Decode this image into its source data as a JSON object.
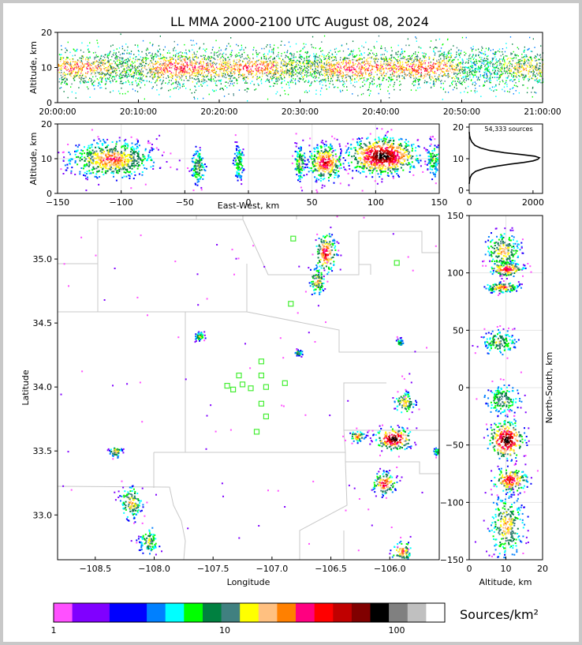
{
  "title": "LL MMA 2000-2100 UTC August 08, 2024",
  "chart_data": [
    {
      "id": "time-height",
      "type": "heatmap",
      "ylabel": "Altitude, km",
      "xticks": [
        "20:00:00",
        "20:10:00",
        "20:20:00",
        "20:30:00",
        "20:40:00",
        "20:50:00",
        "21:00:00"
      ],
      "ylim": [
        0,
        20
      ],
      "yticks": [
        "0",
        "10",
        "20"
      ],
      "xlim_minutes": [
        0,
        60
      ],
      "band_center_km": 10,
      "band_halfwidth_km": 3.5
    },
    {
      "id": "ew-altitude",
      "type": "heatmap",
      "xlabel": "East-West, km",
      "ylabel": "Altitude, km",
      "xlim": [
        -150,
        150
      ],
      "xticks": [
        "−150",
        "−100",
        "−50",
        "0",
        "50",
        "100",
        "150"
      ],
      "ylim": [
        0,
        20
      ],
      "yticks": [
        "0",
        "10",
        "20"
      ],
      "clusters": [
        {
          "x": -108,
          "z": 10,
          "w": 30,
          "intensity": 0.7
        },
        {
          "x": -40,
          "z": 8,
          "w": 5,
          "intensity": 0.5
        },
        {
          "x": -8,
          "z": 9,
          "w": 4,
          "intensity": 0.4
        },
        {
          "x": 40,
          "z": 9,
          "w": 4,
          "intensity": 0.5
        },
        {
          "x": 60,
          "z": 9,
          "w": 12,
          "intensity": 0.8
        },
        {
          "x": 105,
          "z": 11,
          "w": 25,
          "intensity": 1.0
        },
        {
          "x": 145,
          "z": 10,
          "w": 5,
          "intensity": 0.4
        }
      ]
    },
    {
      "id": "altitude-histogram",
      "type": "line",
      "annotation": "54,333 sources",
      "xlim": [
        0,
        2300
      ],
      "xticks": [
        "0",
        "2000"
      ],
      "ylim": [
        -1,
        21
      ],
      "yticks": [
        "0",
        "10",
        "20"
      ],
      "x": [
        0,
        10,
        30,
        80,
        200,
        500,
        900,
        1300,
        1700,
        2000,
        2150,
        2200,
        2050,
        1650,
        1100,
        650,
        350,
        180,
        90,
        40,
        10,
        0
      ],
      "y": [
        2,
        3,
        4,
        5,
        6,
        7,
        7.7,
        8.3,
        8.8,
        9.3,
        9.8,
        10.3,
        10.8,
        11.3,
        11.9,
        12.6,
        13.4,
        14.2,
        15.2,
        16.2,
        17.3,
        18.5
      ]
    },
    {
      "id": "plan-view",
      "type": "heatmap",
      "xlabel": "Longitude",
      "ylabel": "Latitude",
      "xlim": [
        -108.82,
        -105.58
      ],
      "ylim": [
        32.65,
        35.34
      ],
      "xticks": [
        "−108.5",
        "−108.0",
        "−107.5",
        "−107.0",
        "−106.5",
        "−106.0"
      ],
      "xtick_values": [
        -108.5,
        -108.0,
        -107.5,
        -107.0,
        -106.5,
        -106.0
      ],
      "yticks": [
        "33.0",
        "33.5",
        "34.0",
        "34.5",
        "35.0"
      ],
      "ytick_values": [
        33.0,
        33.5,
        34.0,
        34.5,
        35.0
      ],
      "stations": [
        [
          -106.82,
          35.16
        ],
        [
          -105.94,
          34.97
        ],
        [
          -106.84,
          34.65
        ],
        [
          -107.09,
          34.2
        ],
        [
          -107.28,
          34.09
        ],
        [
          -107.09,
          34.09
        ],
        [
          -107.38,
          34.01
        ],
        [
          -107.25,
          34.02
        ],
        [
          -107.33,
          33.98
        ],
        [
          -107.18,
          33.99
        ],
        [
          -107.05,
          34.0
        ],
        [
          -106.89,
          34.03
        ],
        [
          -107.09,
          33.87
        ],
        [
          -107.05,
          33.77
        ],
        [
          -107.13,
          33.65
        ]
      ],
      "clusters": [
        {
          "lon": -106.55,
          "lat": 35.05,
          "w": 0.08,
          "h": 0.14,
          "intensity": 0.8
        },
        {
          "lon": -106.62,
          "lat": 34.83,
          "w": 0.06,
          "h": 0.1,
          "intensity": 0.6
        },
        {
          "lon": -105.97,
          "lat": 33.6,
          "w": 0.14,
          "h": 0.08,
          "intensity": 1.0
        },
        {
          "lon": -106.28,
          "lat": 33.62,
          "w": 0.06,
          "h": 0.04,
          "intensity": 0.7
        },
        {
          "lon": -105.88,
          "lat": 33.88,
          "w": 0.08,
          "h": 0.08,
          "intensity": 0.6
        },
        {
          "lon": -106.05,
          "lat": 33.25,
          "w": 0.09,
          "h": 0.08,
          "intensity": 0.8
        },
        {
          "lon": -105.9,
          "lat": 32.72,
          "w": 0.08,
          "h": 0.07,
          "intensity": 0.7
        },
        {
          "lon": -108.33,
          "lat": 33.5,
          "w": 0.05,
          "h": 0.04,
          "intensity": 0.6
        },
        {
          "lon": -108.2,
          "lat": 33.1,
          "w": 0.09,
          "h": 0.12,
          "intensity": 0.6
        },
        {
          "lon": -108.05,
          "lat": 32.8,
          "w": 0.08,
          "h": 0.1,
          "intensity": 0.5
        },
        {
          "lon": -107.62,
          "lat": 34.4,
          "w": 0.04,
          "h": 0.03,
          "intensity": 0.5
        },
        {
          "lon": -106.78,
          "lat": 34.27,
          "w": 0.03,
          "h": 0.02,
          "intensity": 0.5
        },
        {
          "lon": -105.92,
          "lat": 34.35,
          "w": 0.03,
          "h": 0.03,
          "intensity": 0.4
        },
        {
          "lon": -105.6,
          "lat": 33.5,
          "w": 0.03,
          "h": 0.03,
          "intensity": 0.4
        }
      ]
    },
    {
      "id": "altitude-ns",
      "type": "heatmap",
      "xlabel": "Altitude, km",
      "ylabel": "North-South, km",
      "xlim": [
        0,
        20
      ],
      "xticks": [
        "0",
        "10",
        "20"
      ],
      "ylim": [
        -150,
        150
      ],
      "yticks": [
        "−150",
        "−100",
        "−50",
        "0",
        "50",
        "100",
        "150"
      ],
      "clusters": [
        {
          "y": 120,
          "z": 9,
          "h": 15,
          "intensity": 0.6
        },
        {
          "y": 104,
          "z": 10,
          "h": 6,
          "intensity": 0.8
        },
        {
          "y": 88,
          "z": 9,
          "h": 4,
          "intensity": 0.7
        },
        {
          "y": 40,
          "z": 8,
          "h": 10,
          "intensity": 0.5
        },
        {
          "y": -10,
          "z": 9,
          "h": 12,
          "intensity": 0.5
        },
        {
          "y": -45,
          "z": 10,
          "h": 15,
          "intensity": 1.0
        },
        {
          "y": -80,
          "z": 11,
          "h": 10,
          "intensity": 0.8
        },
        {
          "y": -120,
          "z": 10,
          "h": 25,
          "intensity": 0.6
        }
      ]
    }
  ],
  "colorbar": {
    "label": "Sources/km²",
    "ticks": [
      "1",
      "10",
      "100"
    ],
    "colors": [
      "#ff50ff",
      "#8000ff",
      "#8000ff",
      "#0000ff",
      "#0000ff",
      "#0080ff",
      "#00ffff",
      "#00ff00",
      "#008040",
      "#408080",
      "#ffff00",
      "#ffc080",
      "#ff8000",
      "#ff0080",
      "#ff0000",
      "#c00000",
      "#800000",
      "#000000",
      "#808080",
      "#c0c0c0",
      "#ffffff"
    ]
  }
}
